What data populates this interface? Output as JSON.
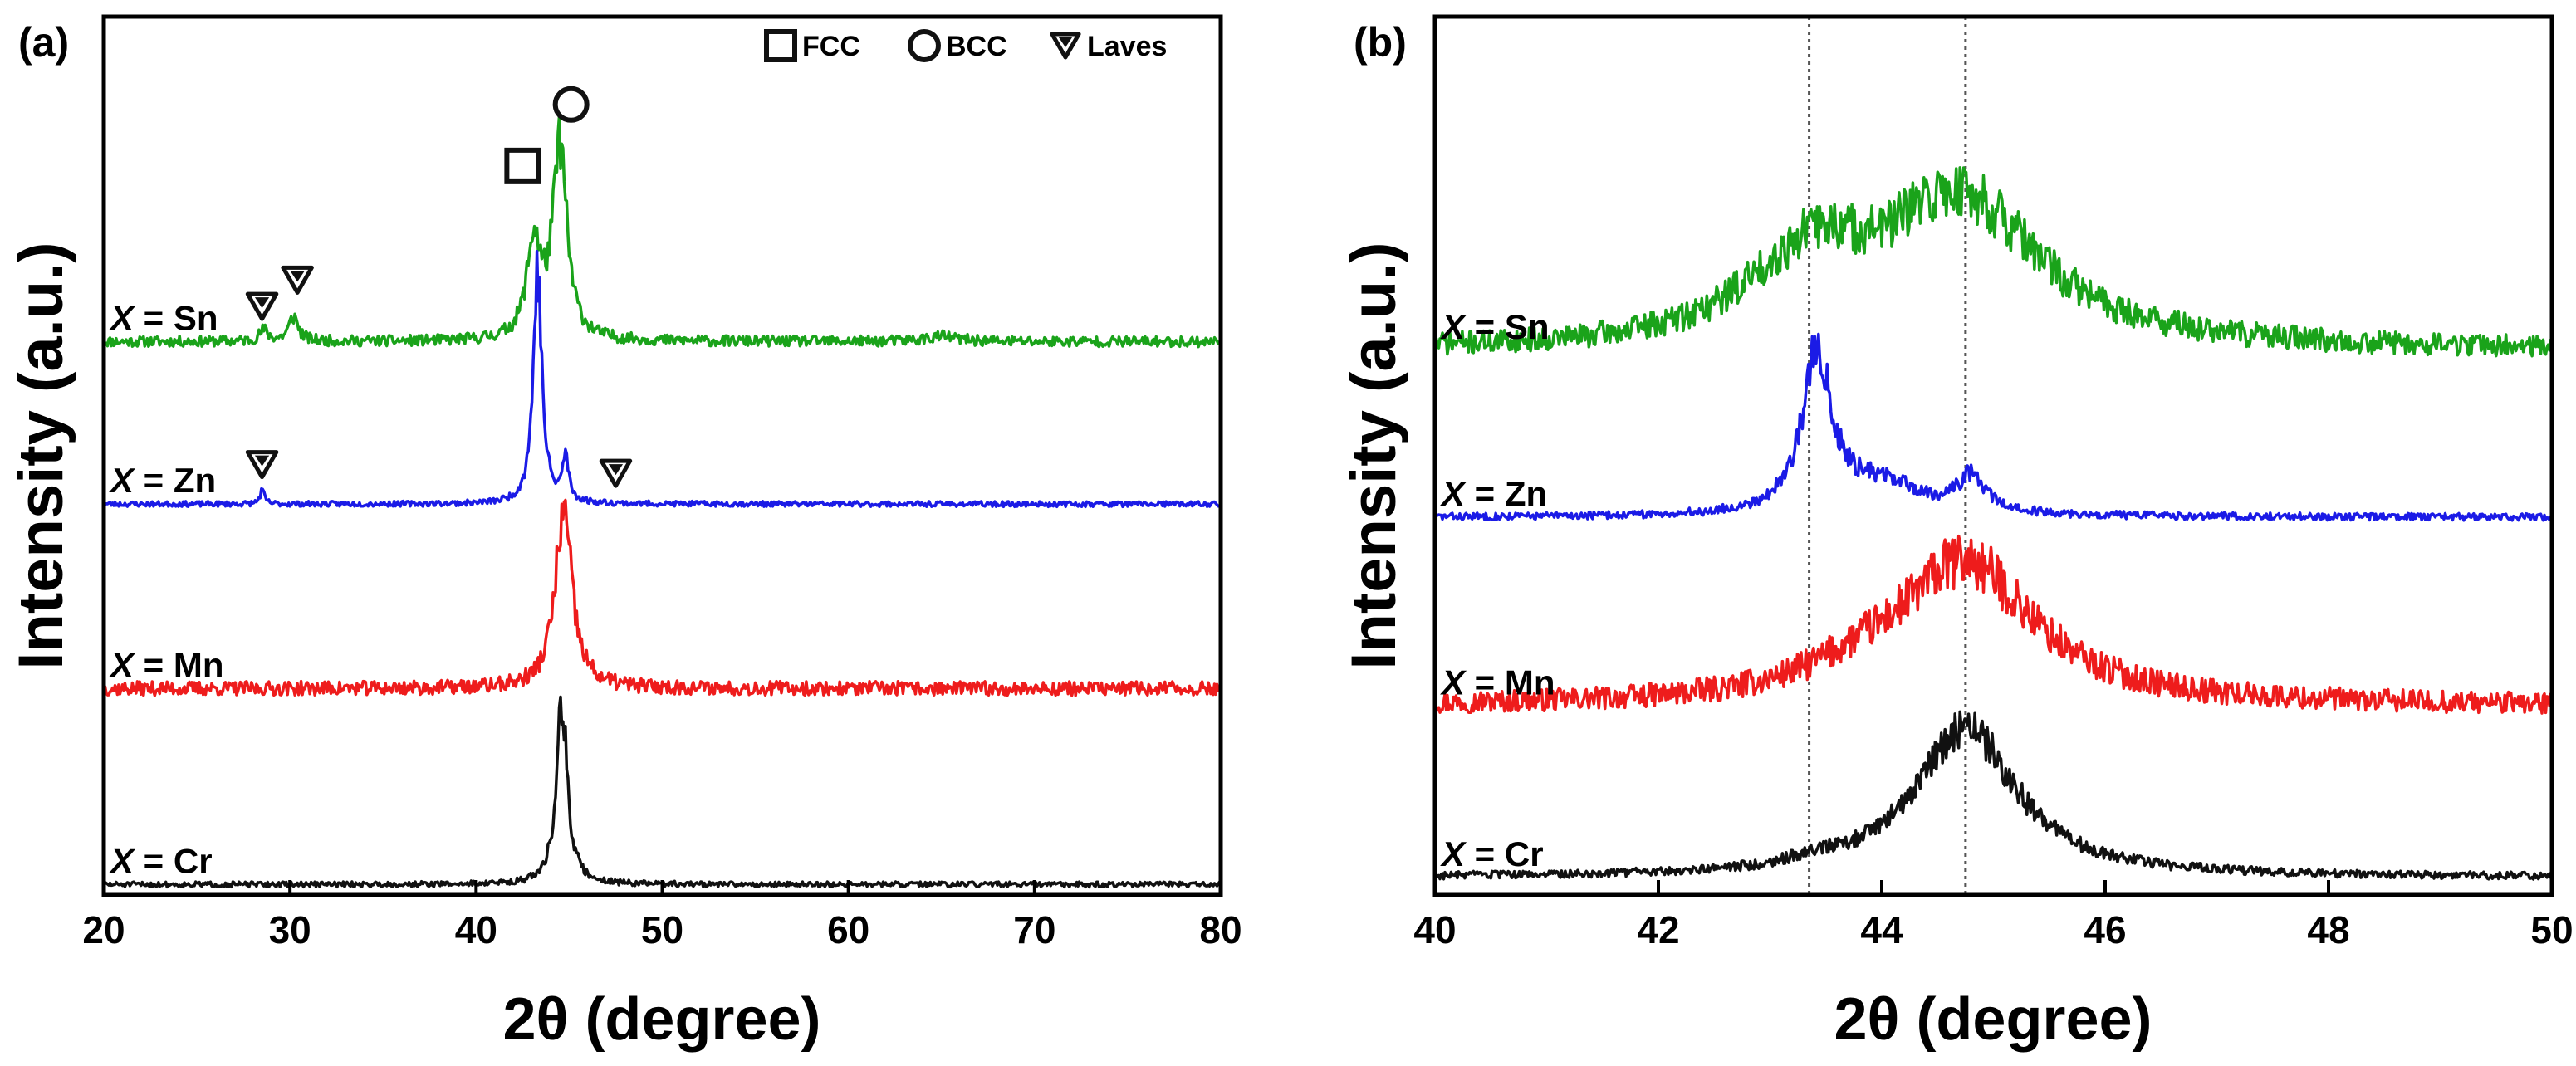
{
  "figure": {
    "panels": [
      {
        "id": "a",
        "label": "(a)"
      },
      {
        "id": "b",
        "label": "(b)"
      }
    ]
  },
  "chart_data": [
    {
      "type": "line",
      "panel": "(a)",
      "xlabel": "2θ (degree)",
      "ylabel": "Intensity (a.u.)",
      "xlim": [
        20,
        80
      ],
      "xticks": [
        20,
        30,
        40,
        50,
        60,
        70,
        80
      ],
      "ylim": [
        0,
        1
      ],
      "yticks_shown": false,
      "grid": false,
      "legend": {
        "placement": "top-right",
        "entries": [
          {
            "symbol": "square",
            "label": "FCC"
          },
          {
            "symbol": "circle",
            "label": "BCC"
          },
          {
            "symbol": "triangle-down",
            "label": "Laves"
          }
        ]
      },
      "series": [
        {
          "name": "X = Sn",
          "prefix": "X",
          "suffix": " = Sn",
          "color": "#1aa31a",
          "baseline": 0.63,
          "noise": 0.006,
          "seed": 11,
          "peaks": [
            [
              28.6,
              0.012,
              0.3
            ],
            [
              30.2,
              0.028,
              0.3
            ],
            [
              43.1,
              0.11,
              0.45
            ],
            [
              44.5,
              0.22,
              0.45
            ],
            [
              65.0,
              0.006,
              1.0
            ]
          ]
        },
        {
          "name": "X = Zn",
          "prefix": "X",
          "suffix": " = Zn",
          "color": "#1b1be6",
          "baseline": 0.445,
          "noise": 0.003,
          "seed": 23,
          "peaks": [
            [
              28.5,
              0.015,
              0.15
            ],
            [
              43.3,
              0.265,
              0.28
            ],
            [
              44.8,
              0.05,
              0.2
            ]
          ]
        },
        {
          "name": "X = Mn",
          "prefix": "X",
          "suffix": " = Mn",
          "color": "#ee1c1c",
          "baseline": 0.235,
          "noise": 0.008,
          "seed": 37,
          "peaks": [
            [
              44.7,
              0.2,
              0.55
            ]
          ]
        },
        {
          "name": "X = Cr",
          "prefix": "X",
          "suffix": " = Cr",
          "color": "#111111",
          "baseline": 0.012,
          "noise": 0.003,
          "seed": 51,
          "peaks": [
            [
              44.6,
              0.21,
              0.35
            ]
          ]
        }
      ],
      "markers": [
        {
          "symbol": "triangle-down",
          "x": 28.5,
          "y": 0.67
        },
        {
          "symbol": "triangle-down",
          "x": 30.4,
          "y": 0.7
        },
        {
          "symbol": "triangle-down",
          "x": 28.5,
          "y": 0.49
        },
        {
          "symbol": "triangle-down",
          "x": 47.5,
          "y": 0.48
        },
        {
          "symbol": "square",
          "x": 42.5,
          "y": 0.83
        },
        {
          "symbol": "circle",
          "x": 45.1,
          "y": 0.9
        }
      ]
    },
    {
      "type": "line",
      "panel": "(b)",
      "xlabel": "2θ (degree)",
      "ylabel": "Intensity (a.u.)",
      "xlim": [
        40,
        50
      ],
      "xticks": [
        40,
        42,
        44,
        46,
        48,
        50
      ],
      "ylim": [
        0,
        1
      ],
      "yticks_shown": false,
      "grid": false,
      "reference_lines": [
        43.35,
        44.75
      ],
      "series": [
        {
          "name": "X = Sn",
          "prefix": "X",
          "suffix": " = Sn",
          "color": "#1aa31a",
          "baseline": 0.62,
          "noise": 0.012,
          "seed": 71,
          "peaks": [
            [
              43.45,
              0.07,
              0.5
            ],
            [
              44.7,
              0.17,
              0.85
            ],
            [
              43.0,
              0.03,
              0.6
            ]
          ]
        },
        {
          "name": "X = Zn",
          "prefix": "X",
          "suffix": " = Zn",
          "color": "#1b1be6",
          "baseline": 0.43,
          "noise": 0.004,
          "seed": 83,
          "peaks": [
            [
              43.42,
              0.18,
              0.16
            ],
            [
              44.0,
              0.035,
              0.45
            ],
            [
              44.8,
              0.04,
              0.15
            ]
          ]
        },
        {
          "name": "X = Mn",
          "prefix": "X",
          "suffix": " = Mn",
          "color": "#ee1c1c",
          "baseline": 0.215,
          "noise": 0.012,
          "seed": 97,
          "peaks": [
            [
              44.75,
              0.16,
              0.75
            ],
            [
              43.8,
              0.02,
              0.6
            ]
          ]
        },
        {
          "name": "X = Cr",
          "prefix": "X",
          "suffix": " = Cr",
          "color": "#111111",
          "baseline": 0.02,
          "noise": 0.004,
          "seed": 103,
          "peaks": [
            [
              44.75,
              0.17,
              0.55
            ],
            [
              43.4,
              0.008,
              0.3
            ]
          ]
        }
      ]
    }
  ]
}
